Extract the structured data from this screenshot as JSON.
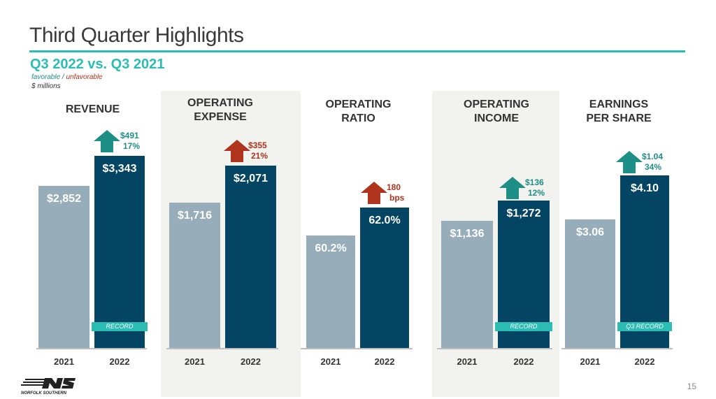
{
  "header": {
    "title": "Third Quarter Highlights",
    "subtitle": "Q3 2022 vs. Q3 2021",
    "favorable": "favorable",
    "separator": "/",
    "unfavorable": "unfavorable",
    "units": "$ millions"
  },
  "colors": {
    "accent": "#2bbcb4",
    "favorable": "#1e8f87",
    "unfavorable": "#b0331d",
    "bar_2021": "#97adb9",
    "bar_2022": "#044563",
    "panel_bg": "#f2f2ee"
  },
  "panels": [
    {
      "title": "REVENUE",
      "v2021": "$2,852",
      "v2022": "$3,343",
      "n2021": 2852,
      "n2022": 3343,
      "change": "$491",
      "pct": "17%",
      "direction": "up",
      "status": "favorable",
      "badge": "RECORD",
      "y2021": "2021",
      "y2022": "2022"
    },
    {
      "title": "OPERATING EXPENSE",
      "v2021": "$1,716",
      "v2022": "$2,071",
      "n2021": 1716,
      "n2022": 2071,
      "change": "$355",
      "pct": "21%",
      "direction": "up",
      "status": "unfavorable",
      "badge": "",
      "y2021": "2021",
      "y2022": "2022"
    },
    {
      "title": "OPERATING RATIO",
      "v2021": "60.2%",
      "v2022": "62.0%",
      "n2021": 60.2,
      "n2022": 62.0,
      "change": "180",
      "pct": "bps",
      "direction": "up",
      "status": "unfavorable",
      "badge": "",
      "y2021": "2021",
      "y2022": "2022"
    },
    {
      "title": "OPERATING INCOME",
      "v2021": "$1,136",
      "v2022": "$1,272",
      "n2021": 1136,
      "n2022": 1272,
      "change": "$136",
      "pct": "12%",
      "direction": "up",
      "status": "favorable",
      "badge": "RECORD",
      "y2021": "2021",
      "y2022": "2022"
    },
    {
      "title": "EARNINGS PER SHARE",
      "v2021": "$3.06",
      "v2022": "$4.10",
      "n2021": 3.06,
      "n2022": 4.1,
      "change": "$1.04",
      "pct": "34%",
      "direction": "up",
      "status": "favorable",
      "badge": "Q3 RECORD",
      "y2021": "2021",
      "y2022": "2022"
    }
  ],
  "footer": {
    "page_number": "15",
    "logo_text": "NORFOLK SOUTHERN",
    "logo_mark": "NS"
  }
}
